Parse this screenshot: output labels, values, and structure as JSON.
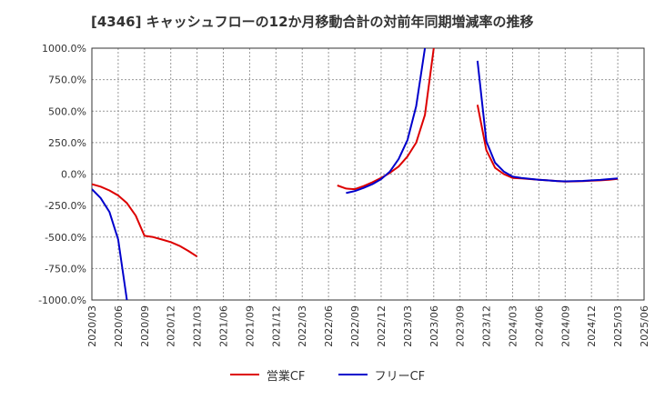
{
  "chart_data": {
    "type": "line",
    "title": "[4346]  キャッシュフローの12か月移動合計の対前年同期増減率の推移",
    "y_unit": "%",
    "ylim": [
      -1000,
      1000
    ],
    "y_ticks": [
      1000,
      750,
      500,
      250,
      0,
      -250,
      -500,
      -750,
      -1000
    ],
    "y_tick_labels": [
      "1000.0%",
      "750.0%",
      "500.0%",
      "250.0%",
      "0.0%",
      "-250.0%",
      "-500.0%",
      "-750.0%",
      "-1000.0%"
    ],
    "x_tick_labels": [
      "2020/03",
      "2020/06",
      "2020/09",
      "2020/12",
      "2021/03",
      "2021/06",
      "2021/09",
      "2021/12",
      "2022/03",
      "2022/06",
      "2022/09",
      "2022/12",
      "2023/03",
      "2023/06",
      "2023/09",
      "2023/12",
      "2024/03",
      "2024/06",
      "2024/09",
      "2024/12",
      "2025/03",
      "2025/06"
    ],
    "grid": true,
    "legend_position": "bottom",
    "series": [
      {
        "name": "営業CF",
        "color": "#dd0000",
        "segments": [
          [
            [
              "2020/03",
              -80
            ],
            [
              "2020/04",
              -100
            ],
            [
              "2020/05",
              -130
            ],
            [
              "2020/06",
              -170
            ],
            [
              "2020/07",
              -230
            ],
            [
              "2020/08",
              -330
            ],
            [
              "2020/09",
              -490
            ],
            [
              "2020/10",
              -500
            ],
            [
              "2020/11",
              -520
            ],
            [
              "2020/12",
              -540
            ],
            [
              "2021/01",
              -570
            ],
            [
              "2021/02",
              -610
            ],
            [
              "2021/03",
              -655
            ]
          ],
          [
            [
              "2022/07",
              -90
            ],
            [
              "2022/08",
              -115
            ],
            [
              "2022/09",
              -120
            ],
            [
              "2022/10",
              -95
            ],
            [
              "2022/11",
              -65
            ],
            [
              "2022/12",
              -30
            ],
            [
              "2023/01",
              10
            ],
            [
              "2023/02",
              60
            ],
            [
              "2023/03",
              140
            ],
            [
              "2023/04",
              250
            ],
            [
              "2023/05",
              470
            ],
            [
              "2023/06",
              1000
            ]
          ],
          [
            [
              "2023/11",
              550
            ],
            [
              "2023/12",
              190
            ],
            [
              "2024/01",
              50
            ],
            [
              "2024/02",
              0
            ],
            [
              "2024/03",
              -30
            ],
            [
              "2024/04",
              -35
            ],
            [
              "2024/05",
              -40
            ],
            [
              "2024/06",
              -45
            ],
            [
              "2024/07",
              -50
            ],
            [
              "2024/08",
              -55
            ],
            [
              "2024/09",
              -60
            ],
            [
              "2024/10",
              -58
            ],
            [
              "2024/11",
              -56
            ],
            [
              "2024/12",
              -53
            ],
            [
              "2025/01",
              -50
            ],
            [
              "2025/02",
              -45
            ],
            [
              "2025/03",
              -38
            ]
          ]
        ]
      },
      {
        "name": "フリーCF",
        "color": "#0000cc",
        "segments": [
          [
            [
              "2020/03",
              -120
            ],
            [
              "2020/04",
              -190
            ],
            [
              "2020/05",
              -300
            ],
            [
              "2020/06",
              -520
            ],
            [
              "2020/07",
              -1000
            ]
          ],
          [
            [
              "2022/08",
              -150
            ],
            [
              "2022/09",
              -135
            ],
            [
              "2022/10",
              -110
            ],
            [
              "2022/11",
              -80
            ],
            [
              "2022/12",
              -40
            ],
            [
              "2023/01",
              20
            ],
            [
              "2023/02",
              120
            ],
            [
              "2023/03",
              270
            ],
            [
              "2023/04",
              540
            ],
            [
              "2023/05",
              1000
            ]
          ],
          [
            [
              "2023/11",
              900
            ],
            [
              "2023/12",
              260
            ],
            [
              "2024/01",
              90
            ],
            [
              "2024/02",
              20
            ],
            [
              "2024/03",
              -20
            ],
            [
              "2024/04",
              -30
            ],
            [
              "2024/05",
              -38
            ],
            [
              "2024/06",
              -45
            ],
            [
              "2024/07",
              -50
            ],
            [
              "2024/08",
              -55
            ],
            [
              "2024/09",
              -58
            ],
            [
              "2024/10",
              -56
            ],
            [
              "2024/11",
              -54
            ],
            [
              "2024/12",
              -50
            ],
            [
              "2025/01",
              -46
            ],
            [
              "2025/02",
              -40
            ],
            [
              "2025/03",
              -35
            ]
          ]
        ]
      }
    ]
  }
}
